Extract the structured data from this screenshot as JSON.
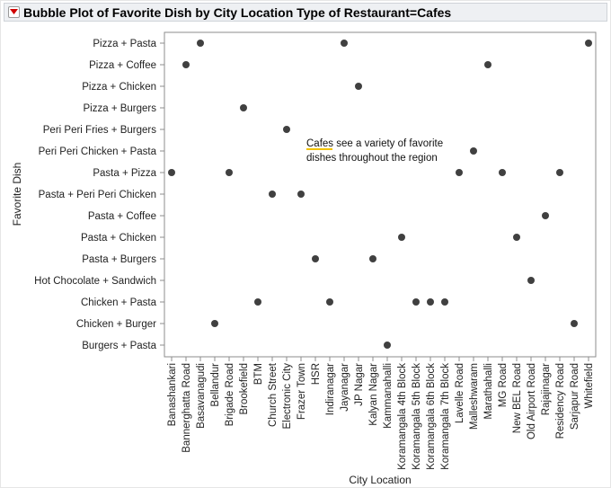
{
  "report": {
    "title": "Bubble Plot of Favorite Dish by City Location Type of Restaurant=Cafes"
  },
  "colors": {
    "dot": "#404040",
    "frame": "#8c8c8c",
    "menu_arrow": "#d00000",
    "annotation_underline": "#f2c200"
  },
  "chart_data": {
    "type": "scatter",
    "title": "Bubble Plot of Favorite Dish by City Location Type of Restaurant=Cafes",
    "xlabel": "City Location",
    "ylabel": "Favorite Dish",
    "grid": false,
    "categories_x": [
      "Banashankari",
      "Bannerghatta Road",
      "Basavanagudi",
      "Bellandur",
      "Brigade Road",
      "Brookefield",
      "BTM",
      "Church Street",
      "Electronic City",
      "Frazer Town",
      "HSR",
      "Indiranagar",
      "Jayanagar",
      "JP Nagar",
      "Kalyan Nagar",
      "Kammanahalli",
      "Koramangala 4th Block",
      "Koramangala 5th Block",
      "Koramangala 6th Block",
      "Koramangala 7th Block",
      "Lavelle Road",
      "Malleshwaram",
      "Marathahalli",
      "MG Road",
      "New BEL Road",
      "Old Airport Road",
      "Rajajinagar",
      "Residency Road",
      "Sarjapur Road",
      "Whitefield"
    ],
    "categories_y": [
      "Pizza + Pasta",
      "Pizza + Coffee",
      "Pizza + Chicken",
      "Pizza + Burgers",
      "Peri Peri Fries + Burgers",
      "Peri Peri Chicken + Pasta",
      "Pasta + Pizza",
      "Pasta + Peri Peri Chicken",
      "Pasta + Coffee",
      "Pasta + Chicken",
      "Pasta + Burgers",
      "Hot Chocolate + Sandwich",
      "Chicken + Pasta",
      "Chicken + Burger",
      "Burgers + Pasta"
    ],
    "points": [
      {
        "x": "Basavanagudi",
        "y": "Pizza + Pasta"
      },
      {
        "x": "Jayanagar",
        "y": "Pizza + Pasta"
      },
      {
        "x": "Whitefield",
        "y": "Pizza + Pasta"
      },
      {
        "x": "Bannerghatta Road",
        "y": "Pizza + Coffee"
      },
      {
        "x": "Marathahalli",
        "y": "Pizza + Coffee"
      },
      {
        "x": "JP Nagar",
        "y": "Pizza + Chicken"
      },
      {
        "x": "Brookefield",
        "y": "Pizza + Burgers"
      },
      {
        "x": "Electronic City",
        "y": "Peri Peri Fries + Burgers"
      },
      {
        "x": "Malleshwaram",
        "y": "Peri Peri Chicken + Pasta"
      },
      {
        "x": "Banashankari",
        "y": "Pasta + Pizza"
      },
      {
        "x": "Brigade Road",
        "y": "Pasta + Pizza"
      },
      {
        "x": "Lavelle Road",
        "y": "Pasta + Pizza"
      },
      {
        "x": "MG Road",
        "y": "Pasta + Pizza"
      },
      {
        "x": "Residency Road",
        "y": "Pasta + Pizza"
      },
      {
        "x": "Church Street",
        "y": "Pasta + Peri Peri Chicken"
      },
      {
        "x": "Frazer Town",
        "y": "Pasta + Peri Peri Chicken"
      },
      {
        "x": "Rajajinagar",
        "y": "Pasta + Coffee"
      },
      {
        "x": "Koramangala 4th Block",
        "y": "Pasta + Chicken"
      },
      {
        "x": "New BEL Road",
        "y": "Pasta + Chicken"
      },
      {
        "x": "HSR",
        "y": "Pasta + Burgers"
      },
      {
        "x": "Kalyan Nagar",
        "y": "Pasta + Burgers"
      },
      {
        "x": "Old Airport Road",
        "y": "Hot Chocolate + Sandwich"
      },
      {
        "x": "BTM",
        "y": "Chicken + Pasta"
      },
      {
        "x": "Indiranagar",
        "y": "Chicken + Pasta"
      },
      {
        "x": "Koramangala 5th Block",
        "y": "Chicken + Pasta"
      },
      {
        "x": "Koramangala 6th Block",
        "y": "Chicken + Pasta"
      },
      {
        "x": "Koramangala 7th Block",
        "y": "Chicken + Pasta"
      },
      {
        "x": "Bellandur",
        "y": "Chicken + Burger"
      },
      {
        "x": "Sarjapur Road",
        "y": "Chicken + Burger"
      },
      {
        "x": "Kammanahalli",
        "y": "Burgers + Pasta"
      }
    ],
    "annotation": {
      "lines": [
        "Cafes see a variety of favorite",
        "dishes throughout the region"
      ],
      "highlighted_word": "Cafes"
    }
  }
}
